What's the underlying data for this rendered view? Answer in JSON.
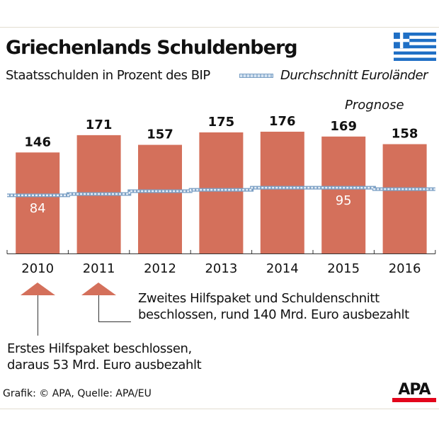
{
  "header": {
    "title": "Griechenlands Schuldenberg",
    "subtitle": "Staatsschulden in Prozent des BIP",
    "legend_label": "Durchschnitt Euroländer",
    "forecast_label": "Prognose"
  },
  "chart_data": {
    "type": "bar",
    "title": "Griechenlands Schuldenberg",
    "subtitle": "Staatsschulden in Prozent des BIP",
    "categories": [
      "2010",
      "2011",
      "2012",
      "2013",
      "2014",
      "2015",
      "2016"
    ],
    "series": [
      {
        "name": "Staatsschulden in Prozent des BIP",
        "type": "bar",
        "values": [
          146,
          171,
          157,
          175,
          176,
          169,
          158
        ],
        "color": "#d4705b"
      },
      {
        "name": "Durchschnitt Euroländer",
        "type": "step-line",
        "values": [
          84,
          86,
          90,
          92,
          95,
          95,
          93
        ],
        "labeled": {
          "2010": "84",
          "2015": "95"
        },
        "color": "#8fb0cf"
      }
    ],
    "forecast_categories": [
      "2015",
      "2016"
    ],
    "ylim": [
      0,
      180
    ],
    "grid": false
  },
  "annotations": {
    "first": {
      "line1": "Erstes Hilfspaket beschlossen,",
      "line2": "daraus  53 Mrd. Euro ausbezahlt",
      "year": "2010"
    },
    "second": {
      "line1": "Zweites Hilfspaket und Schuldenschnitt",
      "line2": "beschlossen, rund 140  Mrd. Euro ausbezahlt",
      "year": "2011"
    }
  },
  "footer": {
    "source": "Grafik: © APA, Quelle: APA/EU",
    "logo": "APA"
  },
  "colors": {
    "bar": "#d4705b",
    "avg_line": "#8fb0cf",
    "flag_blue": "#1f6fc5",
    "logo_red": "#e3051b"
  }
}
